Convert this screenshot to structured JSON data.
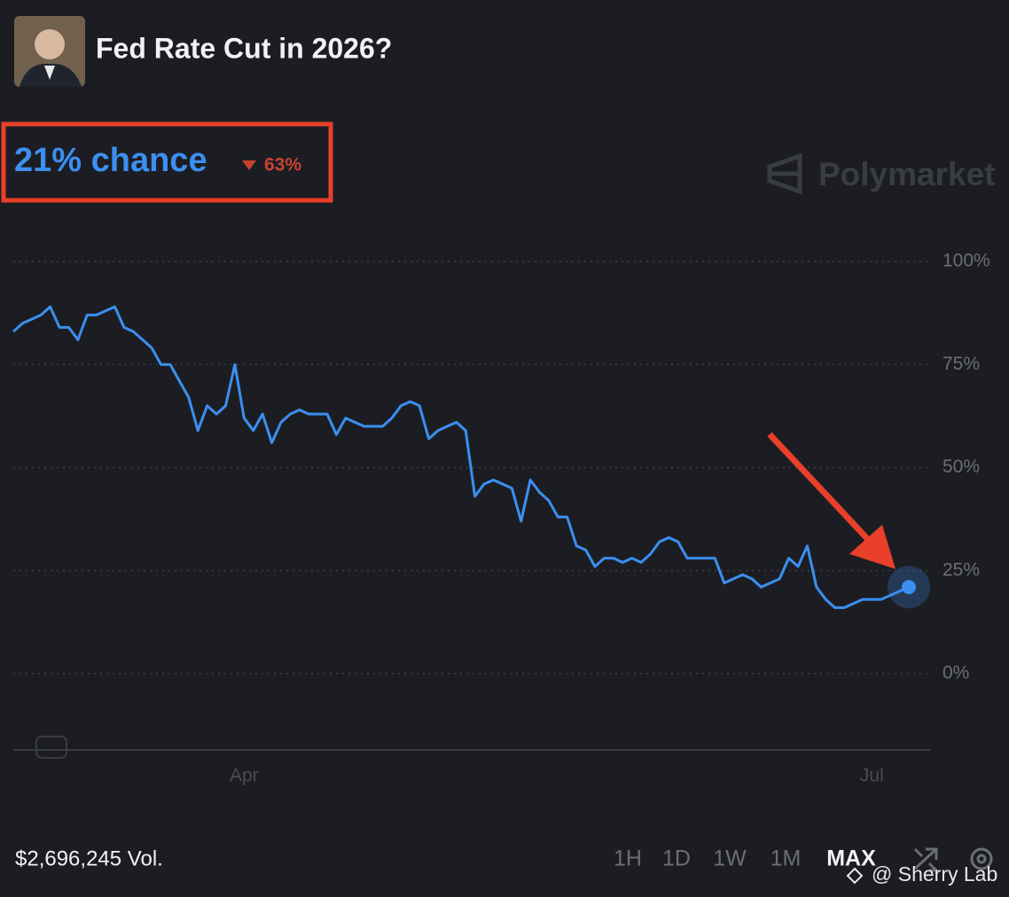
{
  "header": {
    "title": "Fed Rate Cut in 2026?"
  },
  "market": {
    "probability": "21% chance",
    "change": "63%",
    "brand": "Polymarket"
  },
  "chart_data": {
    "type": "line",
    "color": "#3b8ff0",
    "grid": true,
    "categories": [
      null,
      null,
      null,
      null,
      null,
      null,
      null,
      null,
      null,
      null,
      null,
      null,
      null,
      null,
      null,
      null,
      null,
      null,
      null,
      null,
      null,
      null,
      null,
      null,
      null,
      "Apr",
      null,
      null,
      null,
      null,
      null,
      null,
      null,
      null,
      null,
      null,
      null,
      null,
      null,
      null,
      null,
      null,
      null,
      null,
      null,
      null,
      null,
      null,
      null,
      null,
      null,
      null,
      null,
      null,
      null,
      null,
      null,
      null,
      null,
      null,
      null,
      null,
      null,
      null,
      null,
      null,
      null,
      null,
      null,
      null,
      null,
      null,
      null,
      null,
      null,
      null,
      null,
      null,
      null,
      null,
      null,
      null,
      null,
      null,
      null,
      null,
      null,
      null,
      null,
      null,
      null,
      null,
      null,
      "Jul",
      null,
      null,
      null,
      null
    ],
    "values": [
      83,
      85,
      86,
      87,
      89,
      84,
      84,
      81,
      87,
      87,
      88,
      89,
      84,
      83,
      81,
      79,
      75,
      75,
      71,
      67,
      59,
      65,
      63,
      65,
      75,
      62,
      59,
      63,
      56,
      61,
      63,
      64,
      63,
      63,
      63,
      58,
      62,
      61,
      60,
      60,
      60,
      62,
      65,
      66,
      65,
      57,
      59,
      60,
      61,
      59,
      43,
      46,
      47,
      46,
      45,
      37,
      47,
      44,
      42,
      38,
      38,
      31,
      30,
      26,
      28,
      28,
      27,
      28,
      27,
      29,
      32,
      33,
      32,
      28,
      28,
      28,
      28,
      22,
      23,
      24,
      23,
      21,
      22,
      23,
      28,
      26,
      31,
      21,
      18,
      16,
      16,
      17,
      18,
      18,
      18,
      19,
      20,
      21
    ],
    "ylim": [
      0,
      100
    ],
    "yticks": [
      {
        "value": 0,
        "label": "0%"
      },
      {
        "value": 25,
        "label": "25%"
      },
      {
        "value": 50,
        "label": "50%"
      },
      {
        "value": 75,
        "label": "75%"
      },
      {
        "value": 100,
        "label": "100%"
      }
    ]
  },
  "footer": {
    "volume": "$2,696,245 Vol.",
    "ranges": [
      "1H",
      "1D",
      "1W",
      "1M",
      "MAX"
    ],
    "watermark": "@ Sherry Lab"
  }
}
